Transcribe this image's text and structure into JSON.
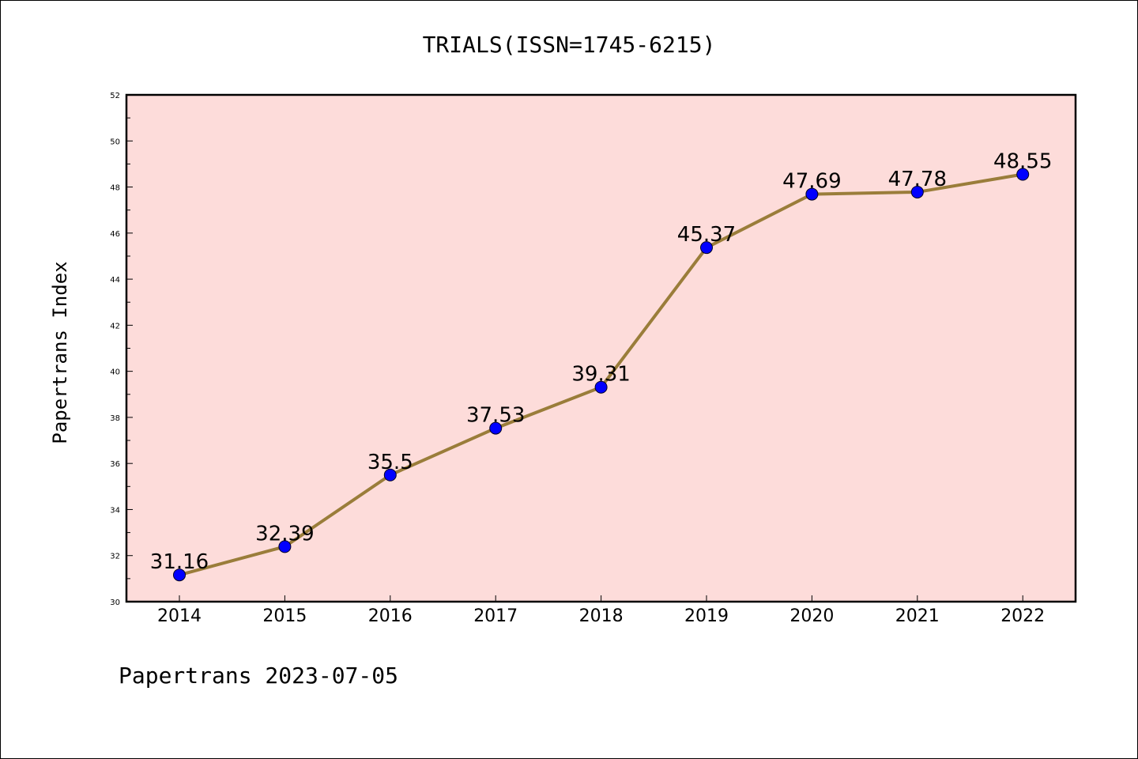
{
  "chart_data": {
    "type": "line",
    "title": "TRIALS(ISSN=1745-6215)",
    "ylabel": "Papertrans Index",
    "xlabel": "",
    "footer": "Papertrans 2023-07-05",
    "categories": [
      "2014",
      "2015",
      "2016",
      "2017",
      "2018",
      "2019",
      "2020",
      "2021",
      "2022"
    ],
    "series": [
      {
        "values": [
          31.16,
          32.39,
          35.5,
          37.53,
          39.31,
          45.37,
          47.69,
          47.78,
          48.55
        ],
        "point_labels": [
          "31.16",
          "32.39",
          "35.5",
          "37.53",
          "39.31",
          "45.37",
          "47.69",
          "47.78",
          "48.55"
        ],
        "line_color": "#9a7d3a",
        "marker_color": "#0000ff"
      }
    ],
    "ylim": [
      30,
      52
    ],
    "yticks": [
      "30",
      "32",
      "34",
      "36",
      "38",
      "40",
      "42",
      "44",
      "46",
      "48",
      "50",
      "52"
    ],
    "plot_background": "#fddcda",
    "grid": false,
    "legend": "none"
  }
}
